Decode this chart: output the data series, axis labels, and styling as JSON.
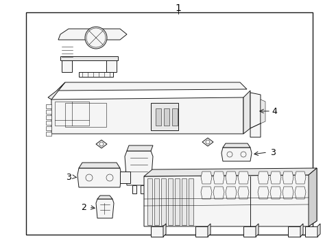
{
  "bg_color": "#ffffff",
  "line_color": "#1a1a1a",
  "border_color": "#1a1a1a",
  "label_color": "#000000",
  "fill_light": "#f5f5f5",
  "fill_mid": "#e8e8e8",
  "fill_dark": "#d0d0d0",
  "fill_gray": "#c0c0c0",
  "lw_main": 0.7,
  "lw_detail": 0.4,
  "lw_border": 1.0,
  "fig_w": 4.9,
  "fig_h": 3.6,
  "dpi": 100
}
